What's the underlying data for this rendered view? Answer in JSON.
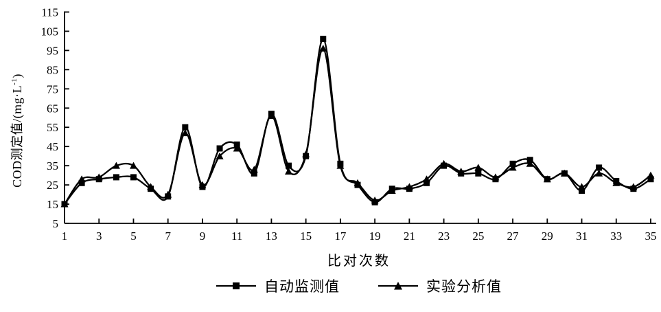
{
  "chart_data": {
    "type": "line",
    "title": "",
    "xlabel": "比对次数",
    "ylabel": "COD测定值/(mg·L⁻¹)",
    "ylabel_parts": {
      "pre": "COD测定值/(mg·L",
      "sup": "-1",
      "post": ")"
    },
    "xlim": [
      1,
      35
    ],
    "ylim": [
      5,
      115
    ],
    "x_ticks": [
      1,
      3,
      5,
      7,
      9,
      11,
      13,
      15,
      17,
      19,
      21,
      23,
      25,
      27,
      29,
      31,
      33,
      35
    ],
    "y_ticks": [
      5,
      15,
      25,
      35,
      45,
      55,
      65,
      75,
      85,
      95,
      105,
      115
    ],
    "grid": false,
    "legend_position": "bottom",
    "background_color": "#ffffff",
    "line_color": "#000000",
    "x": [
      1,
      2,
      3,
      4,
      5,
      6,
      7,
      8,
      9,
      10,
      11,
      12,
      13,
      14,
      15,
      16,
      17,
      18,
      19,
      20,
      21,
      22,
      23,
      24,
      25,
      26,
      27,
      28,
      29,
      30,
      31,
      32,
      33,
      34,
      35
    ],
    "series": [
      {
        "name": "自动监测值",
        "marker": "square",
        "color": "#000000",
        "values": [
          15,
          26,
          28,
          29,
          29,
          23,
          19,
          55,
          24,
          44,
          46,
          31,
          62,
          35,
          40,
          101,
          36,
          25,
          16,
          23,
          23,
          26,
          35,
          31,
          31,
          28,
          36,
          38,
          28,
          31,
          22,
          34,
          27,
          23,
          28
        ]
      },
      {
        "name": "实验分析值",
        "marker": "triangle",
        "color": "#000000",
        "values": [
          15,
          28,
          29,
          35,
          35,
          24,
          20,
          52,
          25,
          40,
          44,
          33,
          61,
          32,
          41,
          96,
          35,
          26,
          17,
          22,
          24,
          28,
          36,
          32,
          34,
          29,
          34,
          36,
          28,
          31,
          24,
          31,
          26,
          24,
          30
        ]
      }
    ]
  }
}
